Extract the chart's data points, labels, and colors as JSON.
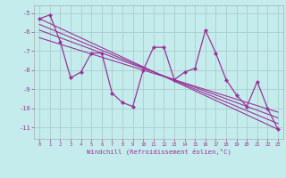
{
  "xlabel": "Windchill (Refroidissement éolien,°C)",
  "bg_color": "#c5ecec",
  "grid_color": "#aacccc",
  "line_color": "#993399",
  "xlim": [
    -0.5,
    23.5
  ],
  "ylim": [
    -11.6,
    -4.6
  ],
  "yticks": [
    -11,
    -10,
    -9,
    -8,
    -7,
    -6,
    -5
  ],
  "xticks": [
    0,
    1,
    2,
    3,
    4,
    5,
    6,
    7,
    8,
    9,
    10,
    11,
    12,
    13,
    14,
    15,
    16,
    17,
    18,
    19,
    20,
    21,
    22,
    23
  ],
  "line1_x": [
    0,
    1,
    2,
    3,
    4,
    5,
    6,
    7,
    8,
    9,
    10,
    11,
    12,
    13,
    14,
    15,
    16,
    17,
    18,
    19,
    20,
    21,
    22,
    23
  ],
  "line1_y": [
    -5.3,
    -5.1,
    -6.5,
    -8.4,
    -8.1,
    -7.1,
    -7.1,
    -9.2,
    -9.7,
    -9.9,
    -8.0,
    -6.8,
    -6.8,
    -8.5,
    -8.1,
    -7.9,
    -5.9,
    -7.1,
    -8.5,
    -9.3,
    -9.9,
    -8.6,
    -10.0,
    -11.1
  ],
  "trend_lines": [
    {
      "x": [
        0,
        23
      ],
      "y": [
        -5.3,
        -11.1
      ]
    },
    {
      "x": [
        0,
        23
      ],
      "y": [
        -5.6,
        -10.8
      ]
    },
    {
      "x": [
        0,
        23
      ],
      "y": [
        -5.9,
        -10.5
      ]
    },
    {
      "x": [
        0,
        23
      ],
      "y": [
        -6.3,
        -10.2
      ]
    }
  ]
}
